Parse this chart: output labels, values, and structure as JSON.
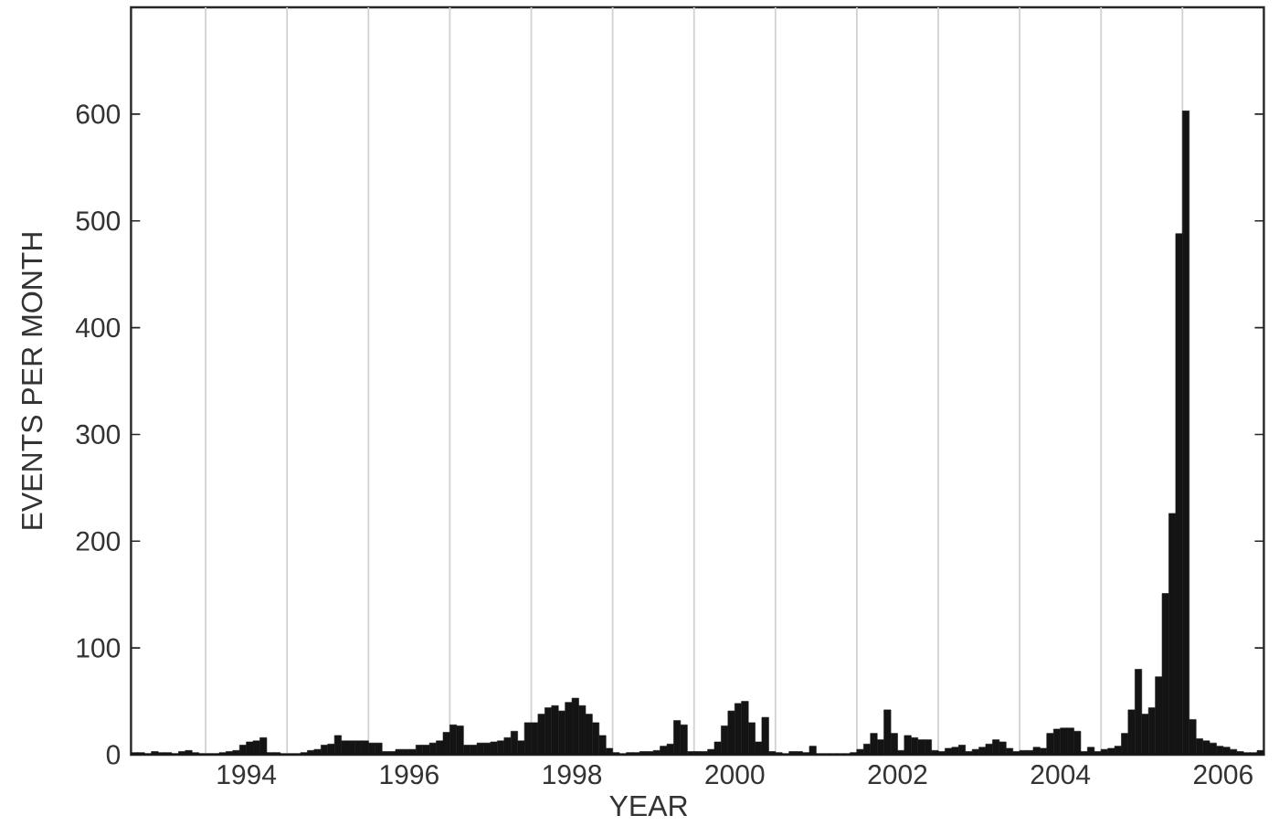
{
  "chart_data": {
    "type": "histogram",
    "xlabel": "YEAR",
    "ylabel": "EVENTS PER MONTH",
    "color": "#141414",
    "bins": [
      1993.083,
      1993.167,
      1993.25,
      1993.333,
      1993.417,
      1993.5,
      1993.583,
      1993.667,
      1993.75,
      1993.833,
      1993.917,
      1994,
      1994.083,
      1994.167,
      1994.25,
      1994.333,
      1994.417,
      1994.5,
      1994.583,
      1994.667,
      1994.75,
      1994.833,
      1994.917,
      1995,
      1995.083,
      1995.167,
      1995.25,
      1995.333,
      1995.417,
      1995.5,
      1995.583,
      1995.667,
      1995.75,
      1995.833,
      1995.917,
      1996,
      1996.083,
      1996.167,
      1996.25,
      1996.333,
      1996.417,
      1996.5,
      1996.583,
      1996.667,
      1996.75,
      1996.833,
      1996.917,
      1997,
      1997.083,
      1997.167,
      1997.25,
      1997.333,
      1997.417,
      1997.5,
      1997.583,
      1997.667,
      1997.75,
      1997.833,
      1997.917,
      1998,
      1998.083,
      1998.167,
      1998.25,
      1998.333,
      1998.417,
      1998.5,
      1998.583,
      1998.667,
      1998.75,
      1998.833,
      1998.917,
      1999,
      1999.083,
      1999.167,
      1999.25,
      1999.333,
      1999.417,
      1999.5,
      1999.583,
      1999.667,
      1999.75,
      1999.833,
      1999.917,
      2000,
      2000.083,
      2000.167,
      2000.25,
      2000.333,
      2000.417,
      2000.5,
      2000.583,
      2000.667,
      2000.75,
      2000.833,
      2000.917,
      2001,
      2001.083,
      2001.167,
      2001.25,
      2001.333,
      2001.417,
      2001.5,
      2001.583,
      2001.667,
      2001.75,
      2001.833,
      2001.917,
      2002,
      2002.083,
      2002.167,
      2002.25,
      2002.333,
      2002.417,
      2002.5,
      2002.583,
      2002.667,
      2002.75,
      2002.833,
      2002.917,
      2003,
      2003.083,
      2003.167,
      2003.25,
      2003.333,
      2003.417,
      2003.5,
      2003.583,
      2003.667,
      2003.75,
      2003.833,
      2003.917,
      2004,
      2004.083,
      2004.167,
      2004.25,
      2004.333,
      2004.417,
      2004.5,
      2004.583,
      2004.667,
      2004.75,
      2004.833,
      2004.917,
      2005,
      2005.083,
      2005.167,
      2005.25,
      2005.333,
      2005.417,
      2005.5,
      2005.583,
      2005.667,
      2005.75,
      2005.833,
      2005.917,
      2006,
      2006.083,
      2006.167,
      2006.25,
      2006.333,
      2006.417,
      2006.5,
      2006.583,
      2006.667,
      2006.75,
      2006.833,
      2006.917,
      2007
    ],
    "values": [
      2,
      2,
      1,
      3,
      2,
      2,
      1,
      3,
      4,
      2,
      1,
      1,
      1,
      2,
      3,
      4,
      9,
      12,
      13,
      16,
      2,
      2,
      1,
      1,
      1,
      2,
      4,
      5,
      9,
      10,
      18,
      13,
      13,
      13,
      13,
      11,
      11,
      3,
      3,
      5,
      5,
      5,
      9,
      9,
      11,
      13,
      21,
      28,
      27,
      9,
      9,
      11,
      11,
      12,
      13,
      16,
      22,
      13,
      30,
      30,
      38,
      44,
      46,
      41,
      49,
      53,
      46,
      38,
      30,
      18,
      6,
      2,
      1,
      2,
      2,
      3,
      3,
      4,
      8,
      10,
      32,
      28,
      3,
      3,
      3,
      5,
      12,
      27,
      41,
      48,
      50,
      30,
      12,
      35,
      3,
      2,
      1,
      3,
      3,
      2,
      8,
      1,
      1,
      1,
      1,
      1,
      2,
      5,
      10,
      20,
      14,
      42,
      20,
      4,
      18,
      16,
      14,
      14,
      4,
      3,
      6,
      7,
      9,
      3,
      5,
      7,
      10,
      14,
      12,
      6,
      3,
      4,
      4,
      7,
      6,
      20,
      24,
      25,
      25,
      22,
      3,
      7,
      3,
      5,
      6,
      8,
      20,
      42,
      80,
      38,
      44,
      73,
      151,
      226,
      488,
      603,
      33,
      15,
      13,
      11,
      8,
      7,
      5,
      3,
      2,
      2,
      4
    ],
    "xlim": [
      1993.083,
      2007
    ],
    "ylim": [
      0,
      700
    ],
    "xticks": [
      {
        "value": 1994,
        "label": null
      },
      {
        "value": 1994.5,
        "label": "1994"
      },
      {
        "value": 1995,
        "label": null
      },
      {
        "value": 1996,
        "label": null
      },
      {
        "value": 1996.5,
        "label": "1996"
      },
      {
        "value": 1997,
        "label": null
      },
      {
        "value": 1998,
        "label": null
      },
      {
        "value": 1998.5,
        "label": "1998"
      },
      {
        "value": 1999,
        "label": null
      },
      {
        "value": 2000,
        "label": null
      },
      {
        "value": 2000.5,
        "label": "2000"
      },
      {
        "value": 2001,
        "label": null
      },
      {
        "value": 2002,
        "label": null
      },
      {
        "value": 2002.5,
        "label": "2002"
      },
      {
        "value": 2003,
        "label": null
      },
      {
        "value": 2004,
        "label": null
      },
      {
        "value": 2004.5,
        "label": "2004"
      },
      {
        "value": 2005,
        "label": null
      },
      {
        "value": 2006,
        "label": null
      },
      {
        "value": 2006.5,
        "label": "2006"
      }
    ],
    "yticks": [
      0,
      100,
      200,
      300,
      400,
      500,
      600
    ],
    "grid": "x"
  }
}
